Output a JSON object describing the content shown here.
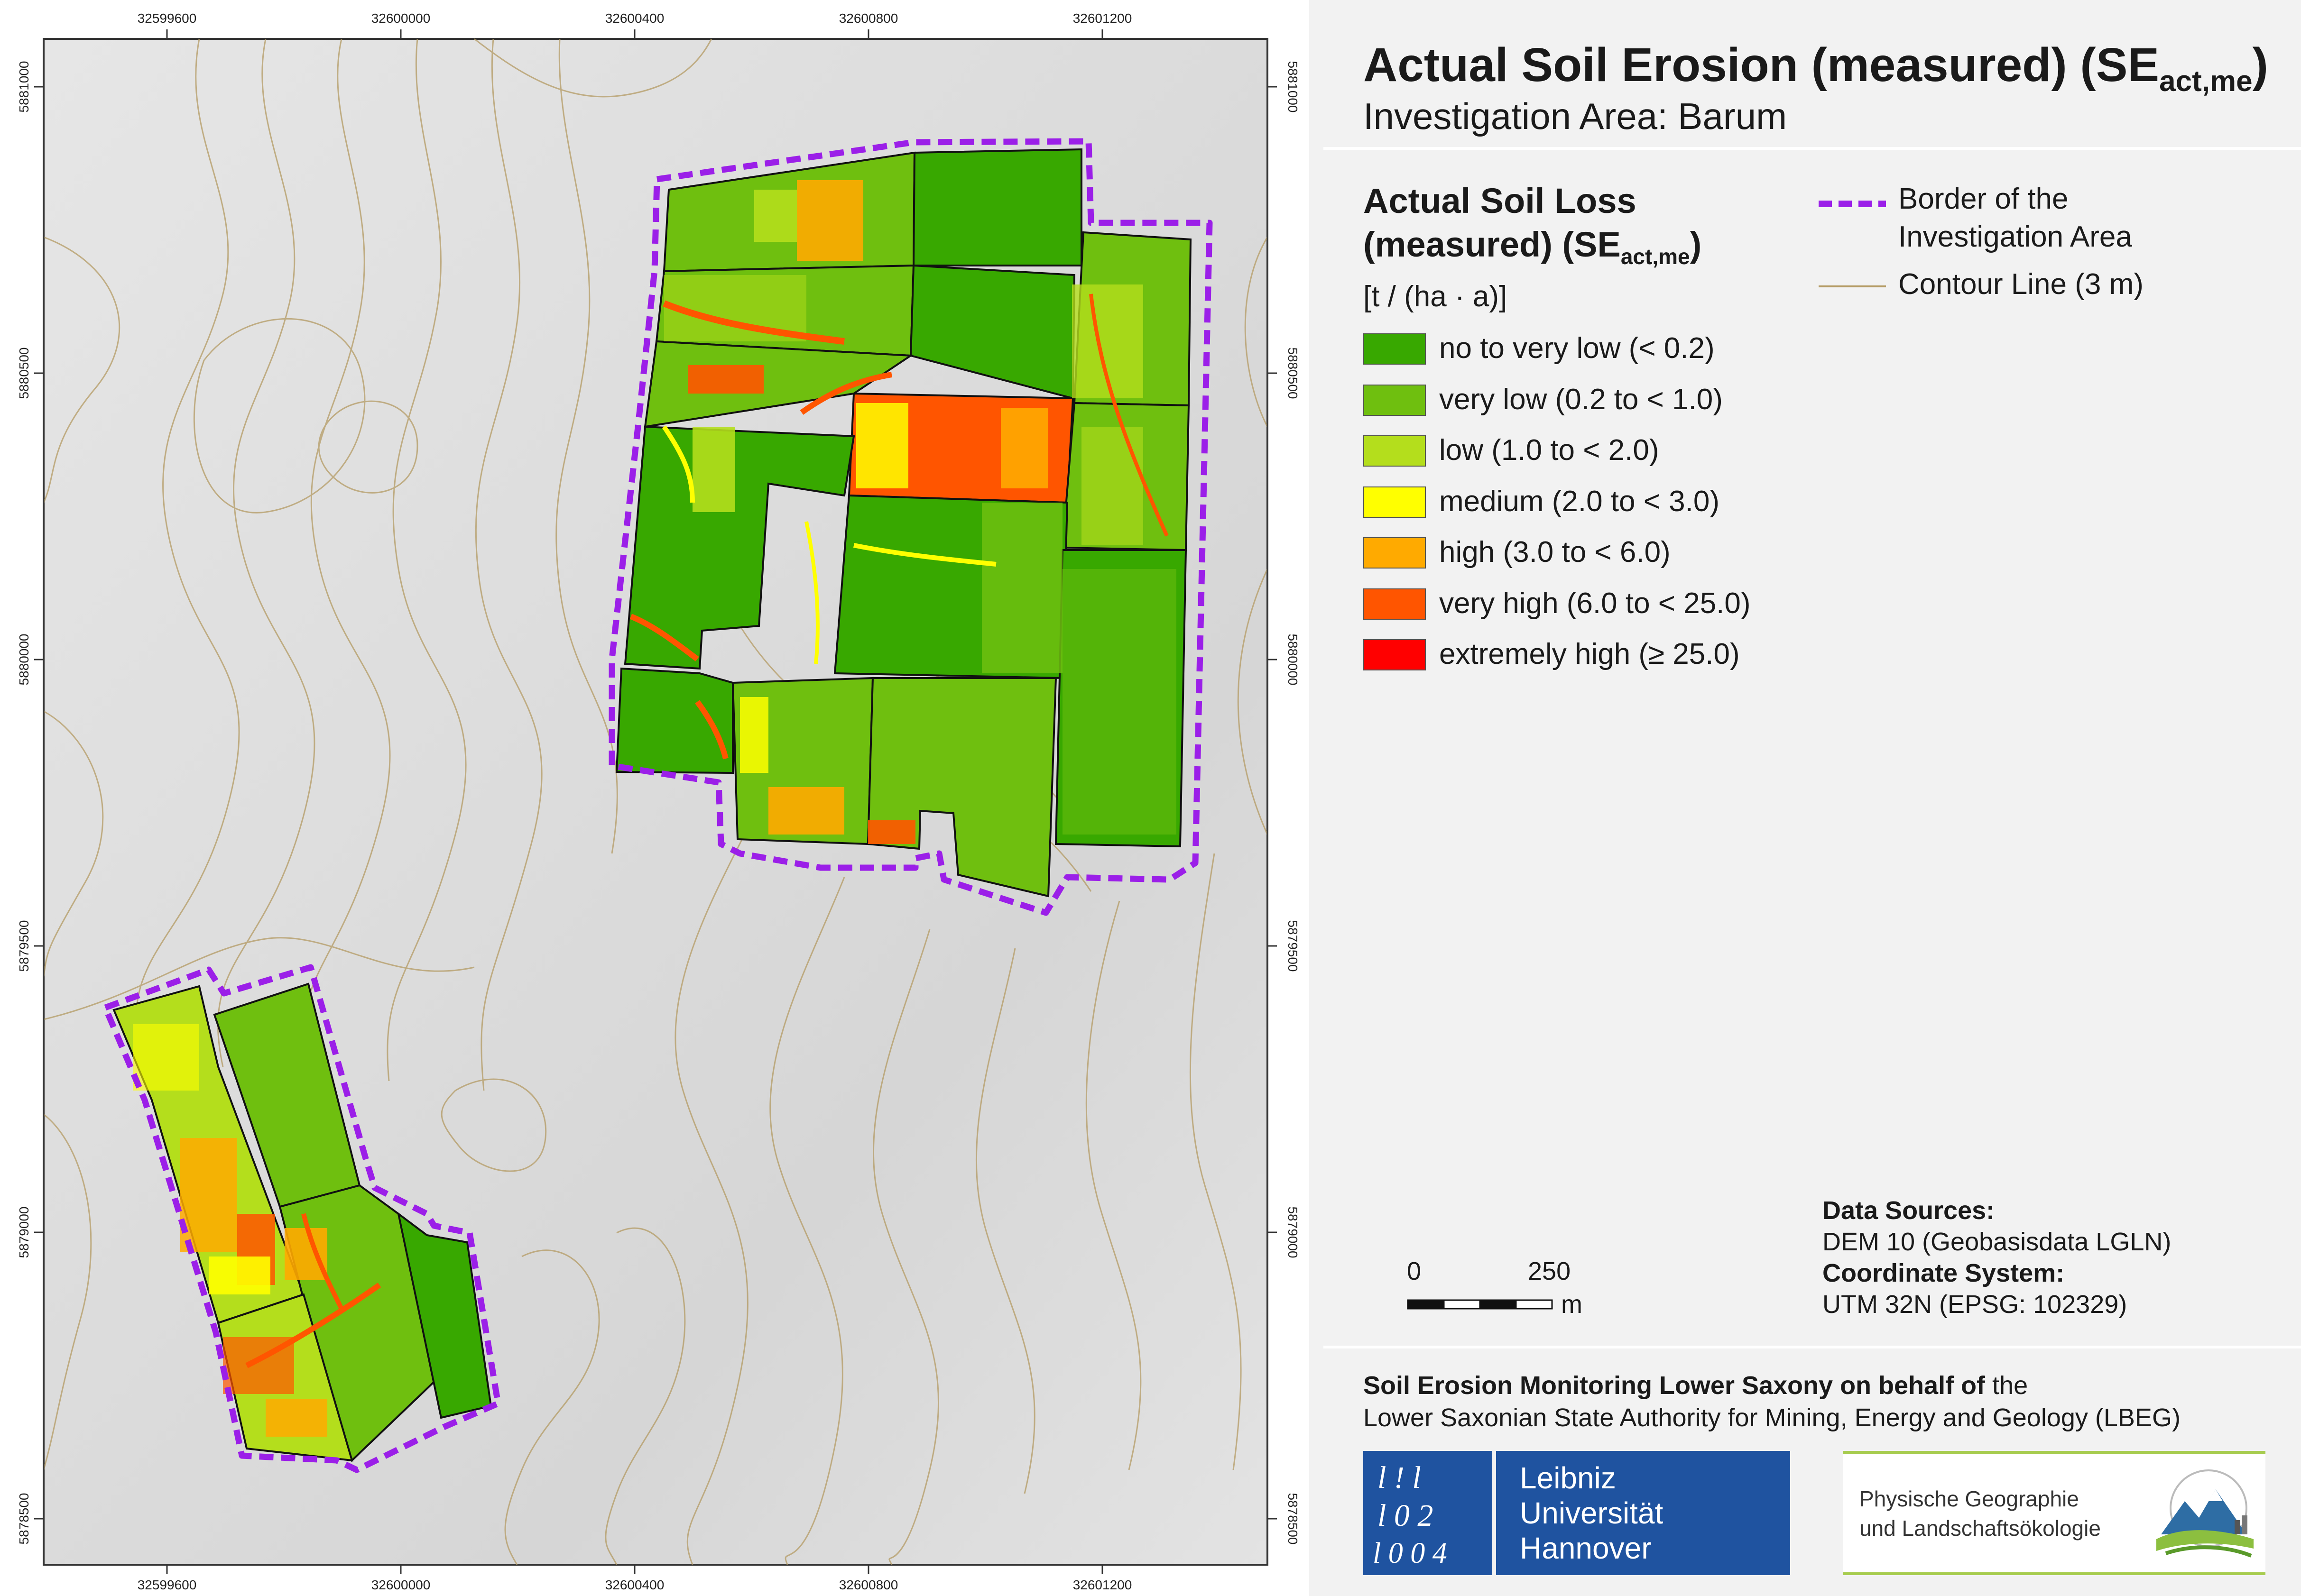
{
  "title": {
    "main": "Actual Soil Erosion (measured) (SE",
    "main_sub": "act,me",
    "main_close": ")",
    "subtitle": "Investigation Area: Barum"
  },
  "legend": {
    "heading_line1": "Actual Soil Loss",
    "heading_line2": "(measured) (SE",
    "heading_sub": "act,me",
    "heading_close": ")",
    "units": "[t / (ha · a)]",
    "classes": [
      {
        "label": "no to very low (< 0.2)",
        "color": "#38a800"
      },
      {
        "label": "very low (0.2 to < 1.0)",
        "color": "#6fbf0f"
      },
      {
        "label": "low (1.0 to < 2.0)",
        "color": "#b4de1c"
      },
      {
        "label": "medium (2.0 to < 3.0)",
        "color": "#ffff00"
      },
      {
        "label": "high (3.0 to < 6.0)",
        "color": "#ffaa00"
      },
      {
        "label": "very high (6.0 to < 25.0)",
        "color": "#ff5500"
      },
      {
        "label": "extremely high (≥ 25.0)",
        "color": "#ff0000"
      }
    ],
    "border_label_line1": "Border of the",
    "border_label_line2": "Investigation Area",
    "border_color": "#9b1fe8",
    "contour_label": "Contour Line (3 m)",
    "contour_color": "#b49b64"
  },
  "map": {
    "x_ticks": [
      "32599600",
      "32600000",
      "32600400",
      "32600800",
      "32601200"
    ],
    "y_ticks": [
      "5881000",
      "5880500",
      "5880000",
      "5879500",
      "5879000",
      "5878500"
    ]
  },
  "scalebar": {
    "start": "0",
    "end": "250",
    "unit": "m"
  },
  "sources": {
    "data_heading": "Data Sources:",
    "data_value": "DEM 10 (Geobasisdata LGLN)",
    "crs_heading": "Coordinate System:",
    "crs_value": "UTM 32N (EPSG: 102329)"
  },
  "footer": {
    "line1_bold": "Soil Erosion Monitoring Lower Saxony on behalf of",
    "line1_rest": " the",
    "line2": "Lower Saxonian State Authority for Mining, Energy and Geology (LBEG)"
  },
  "logos": {
    "luh_line1": "Leibniz",
    "luh_line2": "Universität",
    "luh_line3": "Hannover",
    "luh_mark_row1": "l ! l",
    "luh_mark_row2": "l 0 2",
    "luh_mark_row3": "l 0 0 4",
    "pg_line1": "Physische Geographie",
    "pg_line2": "und Landschaftsökologie"
  }
}
